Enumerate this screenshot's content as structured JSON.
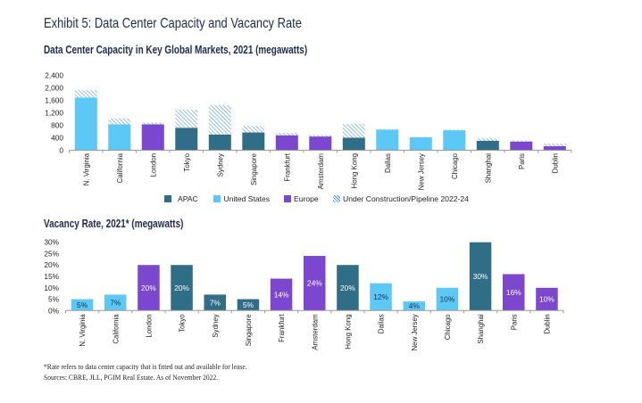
{
  "exhibit": {
    "title": "Exhibit 5: Data Center Capacity and Vacancy Rate"
  },
  "colors": {
    "title": "#1d2b4f",
    "APAC": "#2f6e86",
    "United States": "#5cc8f6",
    "Europe": "#7b47cf",
    "pipeline_hatch": "#6ea9dc",
    "label_dark": "#1d2b4f",
    "label_light": "#ffffff"
  },
  "chart_data": [
    {
      "type": "bar",
      "stacked": true,
      "title": "Data Center Capacity in Key Global Markets, 2021 (megawatts)",
      "xlabel": "",
      "ylabel": "",
      "ylim": [
        0,
        2400
      ],
      "yticks": [
        0,
        400,
        800,
        1200,
        1600,
        2000,
        2400
      ],
      "ytick_labels": [
        "0",
        "400",
        "800",
        "1,200",
        "1,600",
        "2,000",
        "2,400"
      ],
      "grid": false,
      "categories": [
        "N. Virginia",
        "California",
        "London",
        "Tokyo",
        "Sydney",
        "Singapore",
        "Frankfurt",
        "Amsterdam",
        "Hong Kong",
        "Dallas",
        "New Jersey",
        "Chicago",
        "Shanghai",
        "Paris",
        "Dublin"
      ],
      "series": [
        {
          "name": "APAC",
          "values": [
            null,
            null,
            null,
            720,
            500,
            570,
            null,
            null,
            400,
            null,
            null,
            null,
            300,
            null,
            null
          ]
        },
        {
          "name": "United States",
          "values": [
            1690,
            830,
            null,
            null,
            null,
            null,
            null,
            null,
            null,
            660,
            420,
            640,
            null,
            null,
            null
          ]
        },
        {
          "name": "Europe",
          "values": [
            null,
            null,
            830,
            null,
            null,
            null,
            480,
            440,
            null,
            null,
            null,
            null,
            null,
            280,
            130
          ]
        },
        {
          "name": "Under Construction/Pipeline 2022-24",
          "values": [
            240,
            190,
            60,
            580,
            950,
            210,
            80,
            50,
            440,
            20,
            10,
            20,
            80,
            30,
            80
          ]
        }
      ],
      "legend": {
        "position": "bottom-center",
        "items": [
          {
            "label": "APAC",
            "color": "#2f6e86",
            "pattern": "solid"
          },
          {
            "label": "United States",
            "color": "#5cc8f6",
            "pattern": "solid"
          },
          {
            "label": "Europe",
            "color": "#7b47cf",
            "pattern": "solid"
          },
          {
            "label": "Under Construction/Pipeline 2022-24",
            "color": "#6ea9dc",
            "pattern": "hatched"
          }
        ]
      }
    },
    {
      "type": "bar",
      "title": "Vacancy Rate, 2021* (megawatts)",
      "xlabel": "",
      "ylabel": "",
      "ylim": [
        0,
        30
      ],
      "yticks": [
        0,
        5,
        10,
        15,
        20,
        25,
        30
      ],
      "ytick_labels": [
        "0%",
        "5%",
        "10%",
        "15%",
        "20%",
        "25%",
        "30%"
      ],
      "grid": false,
      "categories": [
        "N. Virginia",
        "California",
        "London",
        "Tokyo",
        "Sydney",
        "Singapore",
        "Frankfurt",
        "Amsterdam",
        "Hong Kong",
        "Dallas",
        "New Jersey",
        "Chicago",
        "Shanghai",
        "Paris",
        "Dublin"
      ],
      "category_region": [
        "United States",
        "United States",
        "Europe",
        "APAC",
        "APAC",
        "APAC",
        "Europe",
        "Europe",
        "APAC",
        "United States",
        "United States",
        "United States",
        "APAC",
        "Europe",
        "Europe"
      ],
      "values": [
        5,
        7,
        20,
        20,
        7,
        5,
        14,
        24,
        20,
        12,
        4,
        10,
        30,
        16,
        10
      ],
      "data_labels": [
        "5%",
        "7%",
        "20%",
        "20%",
        "7%",
        "5%",
        "14%",
        "24%",
        "20%",
        "12%",
        "4%",
        "10%",
        "30%",
        "16%",
        "10%"
      ]
    }
  ],
  "footnotes": [
    "*Rate refers to data center capacity that is fitted out and available for lease.",
    "Sources: CBRE, JLL, PGIM Real Estate. As of November 2022."
  ]
}
